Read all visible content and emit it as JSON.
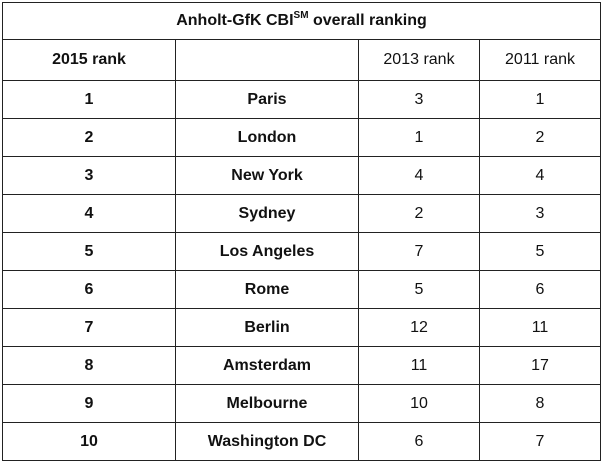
{
  "table": {
    "title_main": "Anholt-GfK CBI",
    "title_superscript": "SM",
    "title_suffix": " overall ranking",
    "headers": [
      "2015 rank",
      "",
      "2013 rank",
      "2011 rank"
    ],
    "rows": [
      {
        "rank_2015": "1",
        "city": "Paris",
        "rank_2013": "3",
        "rank_2011": "1"
      },
      {
        "rank_2015": "2",
        "city": "London",
        "rank_2013": "1",
        "rank_2011": "2"
      },
      {
        "rank_2015": "3",
        "city": "New York",
        "rank_2013": "4",
        "rank_2011": "4"
      },
      {
        "rank_2015": "4",
        "city": "Sydney",
        "rank_2013": "2",
        "rank_2011": "3"
      },
      {
        "rank_2015": "5",
        "city": "Los Angeles",
        "rank_2013": "7",
        "rank_2011": "5"
      },
      {
        "rank_2015": "6",
        "city": "Rome",
        "rank_2013": "5",
        "rank_2011": "6"
      },
      {
        "rank_2015": "7",
        "city": "Berlin",
        "rank_2013": "12",
        "rank_2011": "11"
      },
      {
        "rank_2015": "8",
        "city": "Amsterdam",
        "rank_2013": "11",
        "rank_2011": "17"
      },
      {
        "rank_2015": "9",
        "city": "Melbourne",
        "rank_2013": "10",
        "rank_2011": "8"
      },
      {
        "rank_2015": "10",
        "city": "Washington DC",
        "rank_2013": "6",
        "rank_2011": "7"
      }
    ]
  }
}
